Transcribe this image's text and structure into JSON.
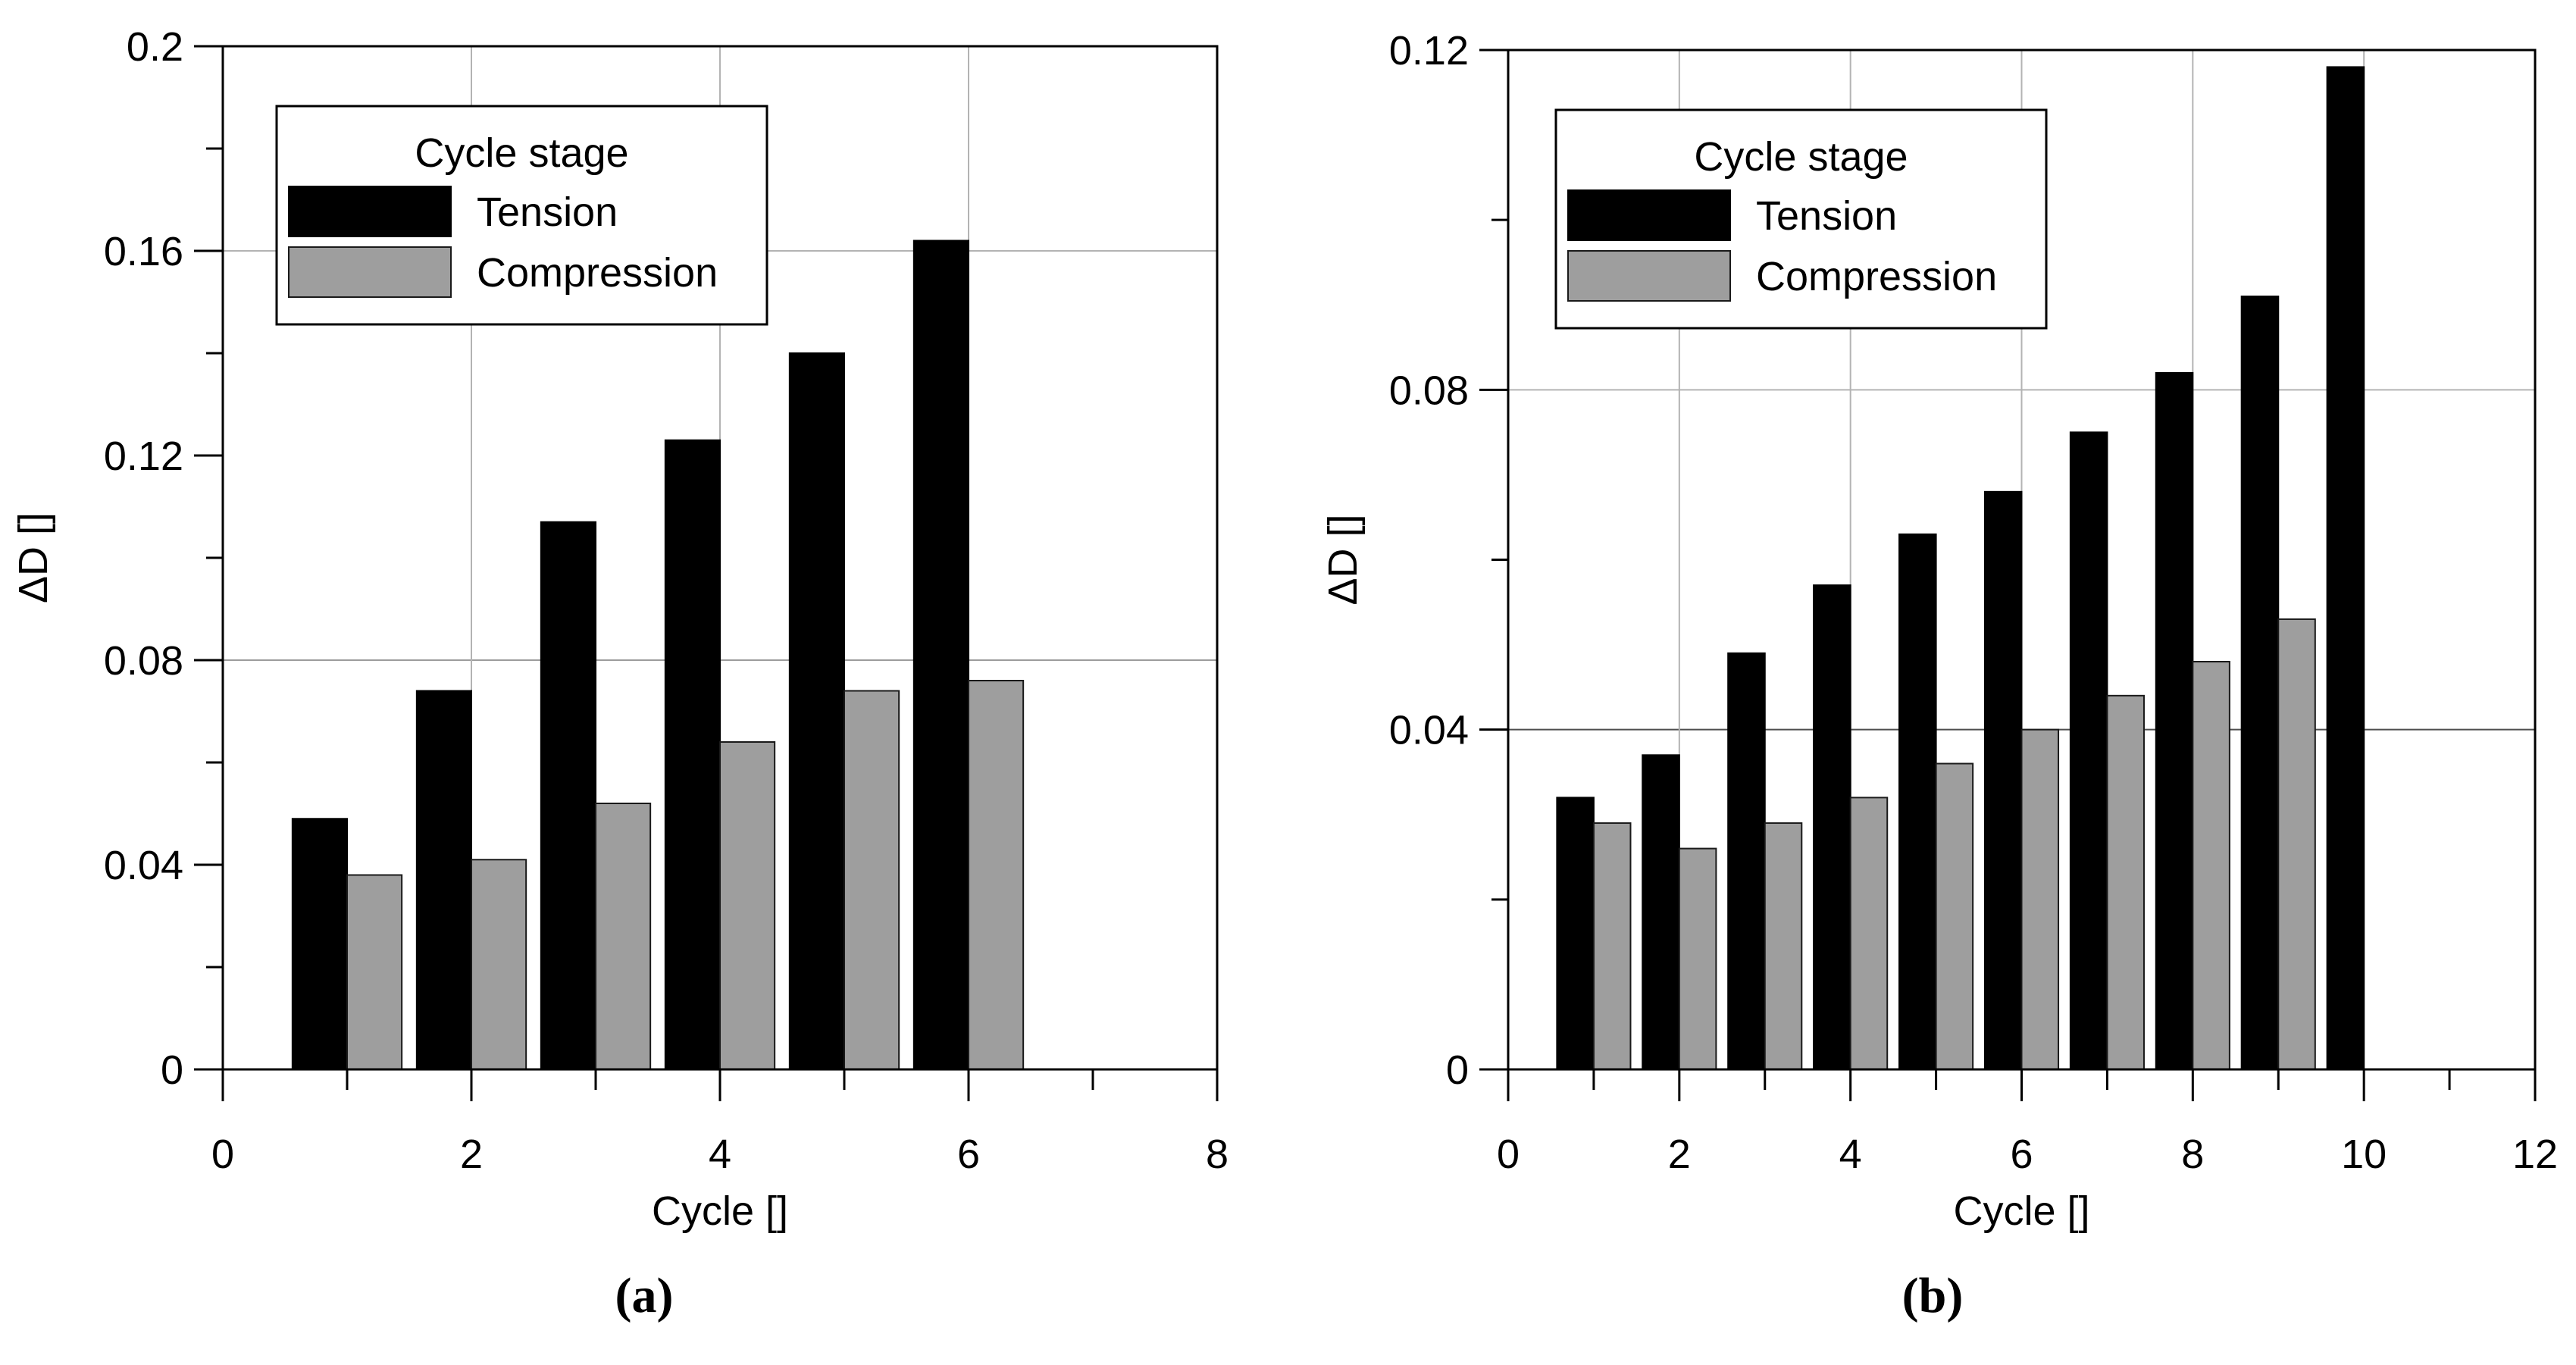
{
  "figure_type": "two-panel scientific bar chart",
  "chart_data": [
    {
      "type": "bar",
      "panel_label": "(a)",
      "categories": [
        1,
        2,
        3,
        4,
        5,
        6
      ],
      "series": [
        {
          "name": "Tension",
          "color": "#000000",
          "edge_color": "#000000",
          "values": [
            0.049,
            0.074,
            0.107,
            0.123,
            0.14,
            0.162
          ]
        },
        {
          "name": "Compression",
          "color": "#9e9e9e",
          "edge_color": "#1a1a1a",
          "values": [
            0.038,
            0.041,
            0.052,
            0.064,
            0.074,
            0.076
          ]
        }
      ],
      "xlabel": "Cycle []",
      "ylabel": "ΔD []",
      "xlim": [
        0,
        8
      ],
      "ylim": [
        0,
        0.2
      ],
      "x_major_tick_step": 2,
      "x_minor_tick_step": 1,
      "y_major_tick_step": 0.04,
      "y_minor_tick_step": 0.02,
      "x_tick_labels": [
        "0",
        "2",
        "4",
        "6",
        "8"
      ],
      "y_tick_labels": [
        "0",
        "0.04",
        "0.08",
        "0.12",
        "0.16",
        "0.2"
      ],
      "legend": {
        "title": "Cycle stage",
        "position": "upper left",
        "entries": [
          "Tension",
          "Compression"
        ]
      },
      "gridlines": {
        "horizontal": [
          {
            "value": 0.16,
            "color": "#b3b3b3"
          },
          {
            "value": 0.08,
            "color": "#9c9c9c"
          }
        ],
        "vertical": [
          {
            "value": 2,
            "color": "#b3b3b3"
          },
          {
            "value": 4,
            "color": "#b3b3b3"
          },
          {
            "value": 6,
            "color": "#b3b3b3"
          }
        ]
      }
    },
    {
      "type": "bar",
      "panel_label": "(b)",
      "categories": [
        1,
        2,
        3,
        4,
        5,
        6,
        7,
        8,
        9,
        10
      ],
      "series": [
        {
          "name": "Tension",
          "color": "#000000",
          "edge_color": "#000000",
          "values": [
            0.032,
            0.037,
            0.049,
            0.057,
            0.063,
            0.068,
            0.075,
            0.082,
            0.091,
            0.118
          ]
        },
        {
          "name": "Compression",
          "color": "#9e9e9e",
          "edge_color": "#1a1a1a",
          "values": [
            0.029,
            0.026,
            0.029,
            0.032,
            0.036,
            0.04,
            0.044,
            0.048,
            0.053,
            null
          ]
        }
      ],
      "xlabel": "Cycle []",
      "ylabel": "ΔD []",
      "xlim": [
        0,
        12
      ],
      "ylim": [
        0,
        0.12
      ],
      "x_major_tick_step": 2,
      "x_minor_tick_step": 1,
      "y_major_tick_step": 0.04,
      "y_minor_tick_step": 0.02,
      "x_tick_labels": [
        "0",
        "2",
        "4",
        "6",
        "8",
        "10",
        "12"
      ],
      "y_tick_labels": [
        "0",
        "0.04",
        "0.08",
        "0.12"
      ],
      "legend": {
        "title": "Cycle stage",
        "position": "upper left",
        "entries": [
          "Tension",
          "Compression"
        ]
      },
      "gridlines": {
        "horizontal": [
          {
            "value": 0.08,
            "color": "#b3b3b3"
          },
          {
            "value": 0.04,
            "color": "#4d4d4d"
          }
        ],
        "vertical": [
          {
            "value": 2,
            "color": "#b3b3b3"
          },
          {
            "value": 4,
            "color": "#b3b3b3"
          },
          {
            "value": 6,
            "color": "#b3b3b3"
          },
          {
            "value": 8,
            "color": "#b3b3b3"
          },
          {
            "value": 10,
            "color": "#b3b3b3"
          }
        ]
      }
    }
  ]
}
